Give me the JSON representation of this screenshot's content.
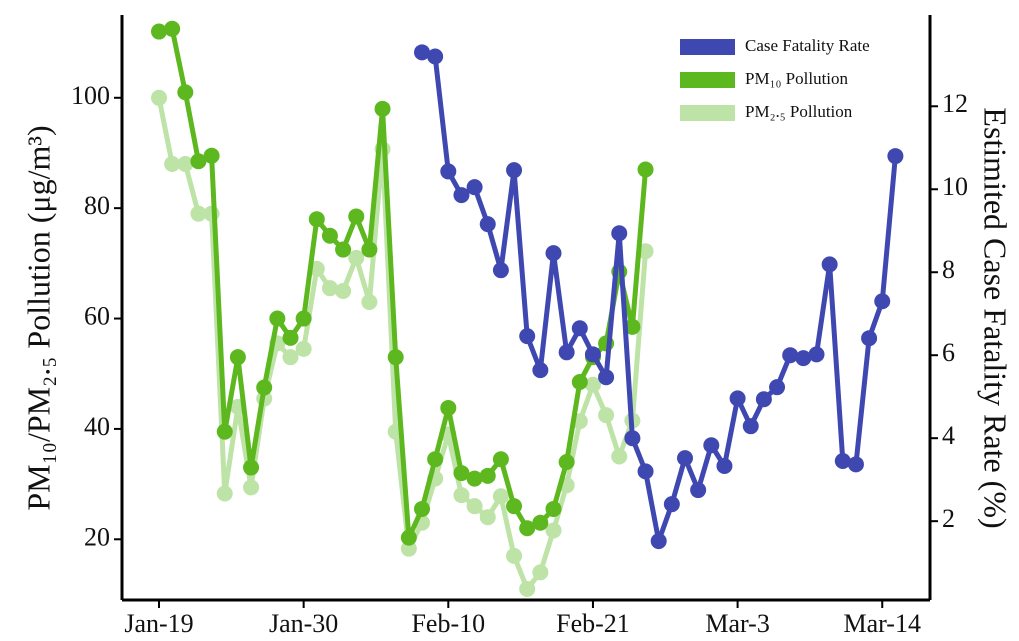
{
  "chart_data": {
    "type": "line",
    "categories": [
      "Jan-19",
      null,
      null,
      null,
      null,
      null,
      null,
      null,
      null,
      null,
      null,
      "Jan-30",
      null,
      null,
      null,
      null,
      null,
      null,
      null,
      null,
      null,
      null,
      "Feb-10",
      null,
      null,
      null,
      null,
      null,
      null,
      null,
      null,
      null,
      null,
      "Feb-21",
      null,
      null,
      null,
      null,
      null,
      null,
      null,
      null,
      null,
      null,
      "Mar-3",
      null,
      null,
      null,
      null,
      null,
      null,
      null,
      null,
      null,
      null,
      "Mar-14",
      null
    ],
    "y_label": "PM₁₀/PM₂.₅ Pollution (μg/m³)",
    "y2_label": "Estimited Case Fatality Rate (%)",
    "ylim": [
      9,
      115
    ],
    "yticks": [
      20,
      40,
      60,
      80,
      100
    ],
    "y2lim": [
      0.1,
      14.2
    ],
    "y2ticks": [
      2,
      4,
      6,
      8,
      10,
      12
    ],
    "legend": "upper right",
    "series": [
      {
        "name": "PM₂.₅ Pollution",
        "color": "#bde3a6",
        "values": [
          100,
          88,
          88,
          79,
          79,
          28.3,
          44,
          29.4,
          45.5,
          55.5,
          53,
          54.5,
          69,
          65.5,
          65,
          71,
          63,
          90.7,
          39.5,
          18.3,
          23,
          31,
          39,
          28,
          26,
          24,
          27.8,
          17,
          11,
          14,
          21.6,
          29.8,
          41.4,
          48,
          42.5,
          35,
          41.5,
          72.2,
          null,
          null,
          null,
          null,
          null,
          null,
          null,
          null,
          null,
          null,
          null,
          null,
          null,
          null,
          null,
          null,
          null,
          null,
          null
        ]
      },
      {
        "name": "PM₁₀ Pollution",
        "color": "#5cb81e",
        "values": [
          112,
          112.5,
          101,
          88.5,
          89.5,
          39.5,
          53,
          33,
          47.5,
          60,
          56.5,
          60,
          78,
          75,
          72.5,
          78.5,
          72.5,
          98,
          53,
          20.3,
          25.5,
          34.5,
          43.8,
          32,
          31,
          31.5,
          34.5,
          26,
          22,
          23,
          25.5,
          34,
          48.5,
          53,
          55.5,
          68.5,
          58.5,
          87,
          null,
          null,
          null,
          null,
          null,
          null,
          null,
          null,
          null,
          null,
          null,
          null,
          null,
          null,
          null,
          null,
          null,
          null,
          null
        ]
      },
      {
        "name": "Case Fatality Rate",
        "color": "#3f48b0",
        "axis": "y2",
        "values": [
          null,
          null,
          null,
          null,
          null,
          null,
          null,
          null,
          null,
          null,
          null,
          null,
          null,
          null,
          null,
          null,
          null,
          null,
          null,
          null,
          13.3,
          13.2,
          10.43,
          9.86,
          10.05,
          9.16,
          8.05,
          10.46,
          6.46,
          5.64,
          8.46,
          6.07,
          6.65,
          6.02,
          5.47,
          8.94,
          4.0,
          3.2,
          1.52,
          2.41,
          3.52,
          2.75,
          3.83,
          3.33,
          4.96,
          4.29,
          4.94,
          5.23,
          6.0,
          5.93,
          6.02,
          8.19,
          3.45,
          3.37,
          6.41,
          7.3,
          10.8
        ]
      }
    ]
  }
}
